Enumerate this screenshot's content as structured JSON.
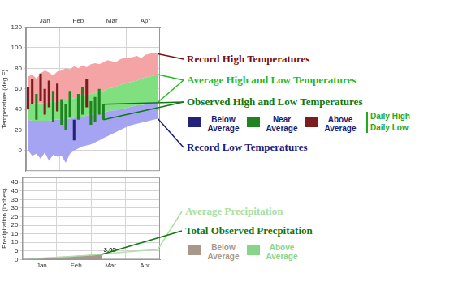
{
  "chart_data": [
    {
      "type": "bar",
      "y_label": "Temperature (deg F)",
      "categories": [
        null,
        null,
        null,
        null,
        "Jan",
        null,
        null,
        null,
        null,
        null,
        null,
        null,
        "Feb",
        null,
        null,
        null,
        null,
        null,
        null,
        null,
        "Mar",
        null,
        null,
        null,
        null,
        null,
        null,
        null,
        "Apr",
        null,
        null,
        null
      ],
      "ylim": [
        -20,
        120
      ],
      "yticks": [
        0,
        20,
        40,
        60,
        80,
        100,
        120
      ],
      "grid": true,
      "series": [
        {
          "name": "Record High Temperatures",
          "type": "area",
          "color": "#f4a4a4",
          "values": [
            72,
            74,
            70,
            75,
            78,
            76,
            73,
            77,
            78,
            80,
            79,
            82,
            80,
            83,
            81,
            84,
            85,
            84,
            86,
            88,
            87,
            86,
            89,
            90,
            90,
            91,
            92,
            90,
            93,
            94,
            95,
            94
          ]
        },
        {
          "name": "Average High and Low Temperatures",
          "type": "area",
          "color": "#80e080",
          "high": [
            47,
            46,
            46,
            46,
            46,
            47,
            47,
            48,
            48,
            49,
            50,
            51,
            52,
            53,
            54,
            55,
            56,
            57,
            58,
            60,
            61,
            62,
            64,
            65,
            66,
            67,
            68,
            70,
            71,
            72,
            73,
            74
          ],
          "low": [
            30,
            29,
            29,
            29,
            29,
            29,
            30,
            30,
            30,
            31,
            31,
            32,
            33,
            33,
            34,
            35,
            35,
            36,
            37,
            38,
            39,
            39,
            40,
            41,
            42,
            43,
            44,
            44,
            45,
            46,
            47,
            47
          ]
        },
        {
          "name": "Observed High and Low Temperatures",
          "type": "bar",
          "high": [
            62,
            70,
            55,
            75,
            60,
            68,
            58,
            65,
            50,
            45,
            58,
            30,
            55,
            62,
            70,
            48,
            52,
            60,
            45,
            null,
            null,
            null,
            null,
            null,
            null,
            null,
            null,
            null,
            null,
            null,
            null,
            null
          ],
          "low": [
            40,
            45,
            30,
            48,
            35,
            42,
            28,
            38,
            25,
            20,
            32,
            10,
            30,
            35,
            42,
            25,
            28,
            35,
            30,
            null,
            null,
            null,
            null,
            null,
            null,
            null,
            null,
            null,
            null,
            null,
            null,
            null
          ]
        },
        {
          "name": "Record Low Temperatures",
          "type": "area",
          "color": "#a4a4f2",
          "values": [
            0,
            -5,
            -3,
            -8,
            -2,
            -10,
            -4,
            -6,
            -5,
            -12,
            -3,
            0,
            2,
            4,
            5,
            6,
            8,
            10,
            12,
            14,
            16,
            18,
            20,
            22,
            24,
            25,
            26,
            27,
            28,
            29,
            30,
            31
          ]
        }
      ],
      "color_key": {
        "items": [
          {
            "label": "Below Average",
            "color": "#23237d"
          },
          {
            "label": "Near Average",
            "color": "#1f841f"
          },
          {
            "label": "Above Average",
            "color": "#7d1c1f"
          }
        ],
        "rows": [
          "Daily High",
          "Daily Low"
        ]
      }
    },
    {
      "type": "line",
      "y_label": "Precipitation (inches)",
      "categories": [
        null,
        null,
        null,
        null,
        "Jan",
        null,
        null,
        null,
        null,
        null,
        null,
        null,
        "Feb",
        null,
        null,
        null,
        null,
        null,
        null,
        null,
        "Mar",
        null,
        null,
        null,
        null,
        null,
        null,
        null,
        "Apr",
        null,
        null,
        null
      ],
      "ylim": [
        0,
        48
      ],
      "yticks": [
        0,
        5,
        10,
        15,
        20,
        25,
        30,
        35,
        40,
        45
      ],
      "grid": true,
      "series": [
        {
          "name": "Average Precipitation",
          "type": "line",
          "color": "#b4dcac",
          "values": [
            0,
            0.2,
            0.4,
            0.6,
            0.8,
            1.0,
            1.15,
            1.3,
            1.45,
            1.6,
            1.75,
            1.9,
            2.05,
            2.2,
            2.35,
            2.5,
            2.7,
            3.0,
            3.3,
            3.5,
            3.7,
            3.9,
            4.1,
            4.3,
            4.5,
            4.7,
            4.9,
            5.1,
            5.3,
            5.5,
            5.7,
            5.9
          ]
        },
        {
          "name": "Total Observed Precpitation",
          "type": "area",
          "data_labels": true,
          "values": [
            0,
            0.1,
            0.3,
            0.4,
            0.5,
            0.7,
            0.9,
            1.0,
            1.2,
            1.3,
            1.5,
            1.7,
            1.8,
            2.0,
            2.2,
            2.4,
            2.6,
            2.8,
            3.05,
            null,
            null,
            null,
            null,
            null,
            null,
            null,
            null,
            null,
            null,
            null,
            null,
            null
          ],
          "value_labels": [
            null,
            null,
            null,
            null,
            null,
            null,
            null,
            null,
            null,
            null,
            null,
            null,
            null,
            null,
            null,
            null,
            null,
            null,
            "3.05",
            null,
            null,
            null,
            null,
            null,
            null,
            null,
            null,
            null,
            null,
            null,
            null,
            null
          ]
        }
      ],
      "color_key": {
        "items": [
          {
            "label": "Below Average",
            "color": "#a8978a"
          },
          {
            "label": "Above Average",
            "color": "#88d488"
          }
        ]
      }
    }
  ]
}
